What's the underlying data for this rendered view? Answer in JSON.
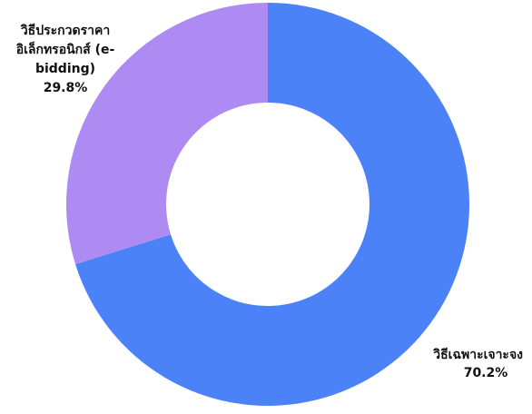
{
  "chart_data": {
    "type": "pie",
    "style": "donut",
    "slices": [
      {
        "label": "วิธีเฉพาะเจาะจง",
        "value": 70.2,
        "value_label": "70.2%",
        "color": "#4c82f7"
      },
      {
        "label": "วิธีประกวดราคาอิเล็กทรอนิกส์ (e-bidding)",
        "value": 29.8,
        "value_label": "29.8%",
        "color": "#ad8bf3"
      }
    ],
    "label_lines": [
      [
        "วิธีเฉพาะเจาะจง",
        "70.2%"
      ],
      [
        "วิธีประกวดราคา",
        "อิเล็กทรอนิกส์ (e-",
        "bidding)",
        "29.8%"
      ]
    ],
    "start": "top",
    "direction": "clockwise",
    "legend": "none"
  }
}
